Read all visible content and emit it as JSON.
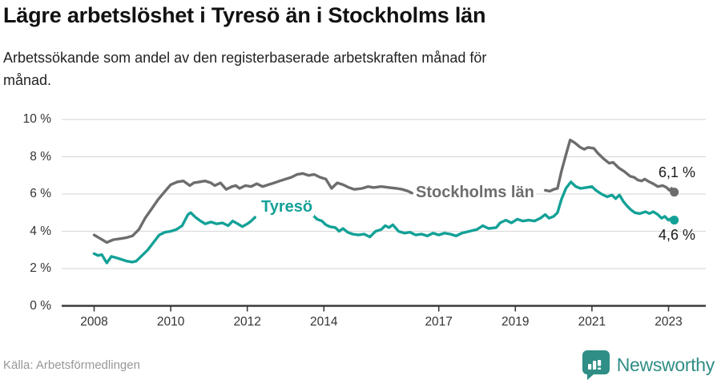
{
  "header": {
    "title": "Lägre arbetslöshet i Tyresö än i Stockholms län",
    "subtitle_lines": [
      "Arbetssökande som andel av den registerbaserade arbetskraften månad för",
      "månad."
    ]
  },
  "footer": {
    "source": "Källa: Arbetsförmedlingen",
    "brand": "Newsworthy"
  },
  "colors": {
    "tyreso": "#13a197",
    "stockholm": "#6d6d6d",
    "grid": "#dcdcdc",
    "axis": "#3a3a3a",
    "tick_text": "#333333",
    "end_label": "#1a1a1a",
    "brand_teal": "#2f8e85"
  },
  "chart_data": {
    "type": "line",
    "title": "Lägre arbetslöshet i Tyresö än i Stockholms län",
    "subtitle": "Arbetssökande som andel av den registerbaserade arbetskraften månad för månad.",
    "unit": "%",
    "xlim": [
      2008,
      2023.4
    ],
    "ylim": [
      0,
      10
    ],
    "grid": "horizontal",
    "legend_position": "inline-on-line",
    "x_ticks": [
      2008,
      2010,
      2012,
      2014,
      2017,
      2019,
      2021,
      2023
    ],
    "x_tick_labels": [
      "2008",
      "2010",
      "2012",
      "2014",
      "2017",
      "2019",
      "2021",
      "2023"
    ],
    "y_ticks": [
      0,
      2,
      4,
      6,
      8,
      10
    ],
    "y_tick_labels": [
      "0 %",
      "2 %",
      "4 %",
      "6 %",
      "8 %",
      "10 %"
    ],
    "series": [
      {
        "name": "Stockholms län",
        "color": "#6d6d6d",
        "end_value": 6.1,
        "end_label": "6,1 %",
        "segments": [
          [
            [
              2008,
              3.8
            ],
            [
              2008.17,
              3.6
            ],
            [
              2008.33,
              3.4
            ],
            [
              2008.5,
              3.55
            ],
            [
              2008.67,
              3.6
            ],
            [
              2008.83,
              3.65
            ],
            [
              2009,
              3.75
            ],
            [
              2009.17,
              4.1
            ],
            [
              2009.33,
              4.7
            ],
            [
              2009.5,
              5.2
            ],
            [
              2009.67,
              5.7
            ],
            [
              2009.83,
              6.1
            ],
            [
              2010,
              6.5
            ],
            [
              2010.17,
              6.65
            ],
            [
              2010.33,
              6.7
            ],
            [
              2010.5,
              6.45
            ],
            [
              2010.6,
              6.6
            ],
            [
              2010.75,
              6.65
            ],
            [
              2010.9,
              6.7
            ],
            [
              2011.05,
              6.6
            ],
            [
              2011.15,
              6.45
            ],
            [
              2011.3,
              6.6
            ],
            [
              2011.45,
              6.25
            ],
            [
              2011.6,
              6.4
            ],
            [
              2011.7,
              6.45
            ],
            [
              2011.8,
              6.3
            ],
            [
              2011.95,
              6.45
            ],
            [
              2012.1,
              6.4
            ],
            [
              2012.25,
              6.55
            ],
            [
              2012.4,
              6.4
            ],
            [
              2012.55,
              6.5
            ],
            [
              2012.7,
              6.6
            ],
            [
              2012.85,
              6.7
            ],
            [
              2013,
              6.8
            ],
            [
              2013.15,
              6.9
            ],
            [
              2013.3,
              7.05
            ],
            [
              2013.45,
              7.1
            ],
            [
              2013.6,
              7.0
            ],
            [
              2013.75,
              7.05
            ],
            [
              2013.9,
              6.9
            ],
            [
              2014.05,
              6.8
            ],
            [
              2014.2,
              6.3
            ],
            [
              2014.35,
              6.6
            ],
            [
              2014.5,
              6.5
            ],
            [
              2014.65,
              6.35
            ],
            [
              2014.8,
              6.25
            ],
            [
              2015,
              6.3
            ],
            [
              2015.15,
              6.4
            ],
            [
              2015.3,
              6.35
            ],
            [
              2015.5,
              6.4
            ],
            [
              2015.7,
              6.35
            ],
            [
              2015.9,
              6.3
            ],
            [
              2016.05,
              6.25
            ],
            [
              2016.2,
              6.15
            ],
            [
              2016.3,
              6.05
            ]
          ],
          [
            [
              2019.78,
              6.2
            ],
            [
              2019.9,
              6.15
            ],
            [
              2020,
              6.25
            ],
            [
              2020.1,
              6.3
            ],
            [
              2020.2,
              7.2
            ],
            [
              2020.32,
              8.1
            ],
            [
              2020.43,
              8.9
            ],
            [
              2020.55,
              8.75
            ],
            [
              2020.7,
              8.5
            ],
            [
              2020.8,
              8.4
            ],
            [
              2020.9,
              8.5
            ],
            [
              2021.05,
              8.45
            ],
            [
              2021.15,
              8.2
            ],
            [
              2021.3,
              7.9
            ],
            [
              2021.45,
              7.65
            ],
            [
              2021.55,
              7.7
            ],
            [
              2021.7,
              7.4
            ],
            [
              2021.85,
              7.2
            ],
            [
              2022,
              6.95
            ],
            [
              2022.1,
              6.9
            ],
            [
              2022.2,
              6.75
            ],
            [
              2022.3,
              6.7
            ],
            [
              2022.38,
              6.8
            ],
            [
              2022.5,
              6.65
            ],
            [
              2022.6,
              6.55
            ],
            [
              2022.72,
              6.4
            ],
            [
              2022.85,
              6.45
            ],
            [
              2022.95,
              6.35
            ],
            [
              2023.02,
              6.2
            ],
            [
              2023.08,
              6.3
            ],
            [
              2023.15,
              6.1
            ]
          ]
        ]
      },
      {
        "name": "Tyresö",
        "color": "#13a197",
        "end_value": 4.6,
        "end_label": "4,6 %",
        "segments": [
          [
            [
              2008,
              2.8
            ],
            [
              2008.1,
              2.7
            ],
            [
              2008.2,
              2.75
            ],
            [
              2008.33,
              2.3
            ],
            [
              2008.45,
              2.65
            ],
            [
              2008.55,
              2.6
            ],
            [
              2008.7,
              2.5
            ],
            [
              2008.85,
              2.4
            ],
            [
              2009,
              2.35
            ],
            [
              2009.1,
              2.4
            ],
            [
              2009.25,
              2.7
            ],
            [
              2009.4,
              3.0
            ],
            [
              2009.55,
              3.4
            ],
            [
              2009.7,
              3.8
            ],
            [
              2009.85,
              3.95
            ],
            [
              2010,
              4.0
            ],
            [
              2010.15,
              4.1
            ],
            [
              2010.3,
              4.3
            ],
            [
              2010.45,
              4.9
            ],
            [
              2010.52,
              5.0
            ],
            [
              2010.65,
              4.75
            ],
            [
              2010.78,
              4.55
            ],
            [
              2010.9,
              4.4
            ],
            [
              2011.05,
              4.5
            ],
            [
              2011.2,
              4.4
            ],
            [
              2011.35,
              4.45
            ],
            [
              2011.5,
              4.3
            ],
            [
              2011.62,
              4.55
            ],
            [
              2011.75,
              4.4
            ],
            [
              2011.87,
              4.25
            ],
            [
              2012,
              4.4
            ],
            [
              2012.1,
              4.55
            ],
            [
              2012.2,
              4.75
            ]
          ],
          [
            [
              2013.72,
              4.85
            ],
            [
              2013.82,
              4.65
            ],
            [
              2013.95,
              4.55
            ],
            [
              2014.05,
              4.35
            ],
            [
              2014.15,
              4.25
            ],
            [
              2014.3,
              4.2
            ],
            [
              2014.4,
              4.0
            ],
            [
              2014.5,
              4.15
            ],
            [
              2014.62,
              3.95
            ],
            [
              2014.75,
              3.85
            ],
            [
              2014.9,
              3.8
            ],
            [
              2015.05,
              3.85
            ],
            [
              2015.2,
              3.7
            ],
            [
              2015.35,
              4.0
            ],
            [
              2015.5,
              4.1
            ],
            [
              2015.6,
              4.3
            ],
            [
              2015.7,
              4.2
            ],
            [
              2015.8,
              4.35
            ],
            [
              2015.95,
              4.0
            ],
            [
              2016.1,
              3.9
            ],
            [
              2016.25,
              3.95
            ],
            [
              2016.4,
              3.8
            ],
            [
              2016.55,
              3.85
            ],
            [
              2016.7,
              3.75
            ],
            [
              2016.85,
              3.9
            ],
            [
              2017,
              3.8
            ],
            [
              2017.15,
              3.9
            ],
            [
              2017.3,
              3.85
            ],
            [
              2017.45,
              3.75
            ],
            [
              2017.6,
              3.9
            ],
            [
              2017.8,
              4.0
            ],
            [
              2018,
              4.1
            ],
            [
              2018.15,
              4.3
            ],
            [
              2018.3,
              4.15
            ],
            [
              2018.5,
              4.2
            ],
            [
              2018.6,
              4.45
            ],
            [
              2018.75,
              4.6
            ],
            [
              2018.9,
              4.45
            ],
            [
              2019.05,
              4.65
            ],
            [
              2019.2,
              4.55
            ],
            [
              2019.35,
              4.6
            ],
            [
              2019.5,
              4.55
            ],
            [
              2019.65,
              4.7
            ],
            [
              2019.78,
              4.9
            ],
            [
              2019.88,
              4.7
            ],
            [
              2020,
              4.8
            ],
            [
              2020.1,
              5.0
            ],
            [
              2020.2,
              5.7
            ],
            [
              2020.32,
              6.3
            ],
            [
              2020.45,
              6.65
            ],
            [
              2020.58,
              6.4
            ],
            [
              2020.7,
              6.3
            ],
            [
              2020.85,
              6.35
            ],
            [
              2021,
              6.4
            ],
            [
              2021.1,
              6.2
            ],
            [
              2021.25,
              6.0
            ],
            [
              2021.4,
              5.85
            ],
            [
              2021.52,
              5.95
            ],
            [
              2021.62,
              5.75
            ],
            [
              2021.72,
              5.95
            ],
            [
              2021.82,
              5.6
            ],
            [
              2021.92,
              5.35
            ],
            [
              2022.02,
              5.15
            ],
            [
              2022.12,
              5.0
            ],
            [
              2022.25,
              4.95
            ],
            [
              2022.4,
              5.05
            ],
            [
              2022.5,
              4.95
            ],
            [
              2022.6,
              5.05
            ],
            [
              2022.72,
              4.9
            ],
            [
              2022.82,
              4.7
            ],
            [
              2022.9,
              4.8
            ],
            [
              2023,
              4.6
            ],
            [
              2023.08,
              4.7
            ],
            [
              2023.15,
              4.6
            ]
          ]
        ]
      }
    ]
  }
}
